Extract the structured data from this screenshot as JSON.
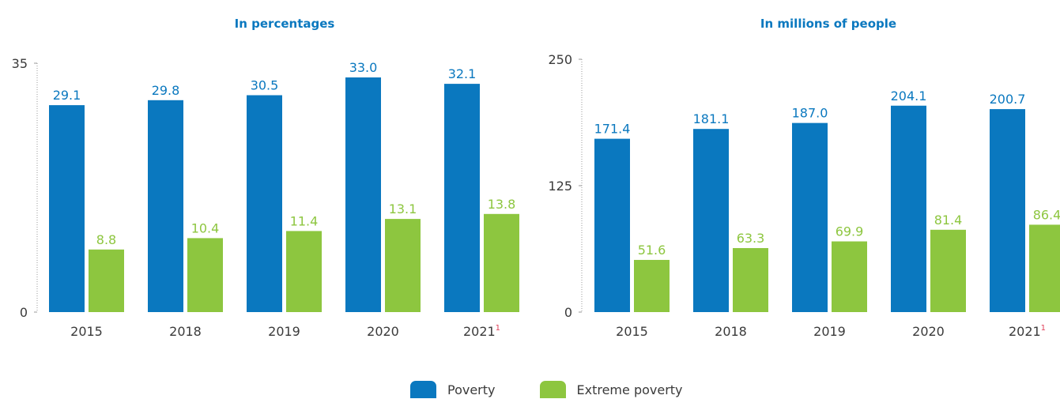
{
  "legend": {
    "poverty": "Poverty",
    "extreme": "Extreme poverty"
  },
  "colors": {
    "poverty": "#0a78bf",
    "extreme": "#8dc63f",
    "title": "#0a78bf",
    "footnote": "#e0415a"
  },
  "footnote_marker": "1",
  "chart_data": [
    {
      "type": "bar",
      "title": "In percentages",
      "categories": [
        "2015",
        "2018",
        "2019",
        "2020",
        "2021"
      ],
      "category_footnotes": [
        "",
        "",
        "",
        "",
        "1"
      ],
      "series": [
        {
          "name": "Poverty",
          "values": [
            29.1,
            29.8,
            30.5,
            33.0,
            32.1
          ],
          "labels": [
            "29.1",
            "29.8",
            "30.5",
            "33.0",
            "32.1"
          ]
        },
        {
          "name": "Extreme poverty",
          "values": [
            8.8,
            10.4,
            11.4,
            13.1,
            13.8
          ],
          "labels": [
            "8.8",
            "10.4",
            "11.4",
            "13.1",
            "13.8"
          ]
        }
      ],
      "yticks": [
        "0",
        "35"
      ],
      "ylim": [
        0,
        35
      ],
      "grid": false,
      "legend": "bottom-center"
    },
    {
      "type": "bar",
      "title": "In millions of people",
      "categories": [
        "2015",
        "2018",
        "2019",
        "2020",
        "2021"
      ],
      "category_footnotes": [
        "",
        "",
        "",
        "",
        "1"
      ],
      "series": [
        {
          "name": "Poverty",
          "values": [
            171.4,
            181.1,
            187.0,
            204.1,
            200.7
          ],
          "labels": [
            "171.4",
            "181.1",
            "187.0",
            "204.1",
            "200.7"
          ]
        },
        {
          "name": "Extreme poverty",
          "values": [
            51.6,
            63.3,
            69.9,
            81.4,
            86.4
          ],
          "labels": [
            "51.6",
            "63.3",
            "69.9",
            "81.4",
            "86.4"
          ]
        }
      ],
      "yticks": [
        "0",
        "125",
        "250"
      ],
      "ylim": [
        0,
        250
      ],
      "grid": false,
      "legend": "bottom-center"
    }
  ]
}
